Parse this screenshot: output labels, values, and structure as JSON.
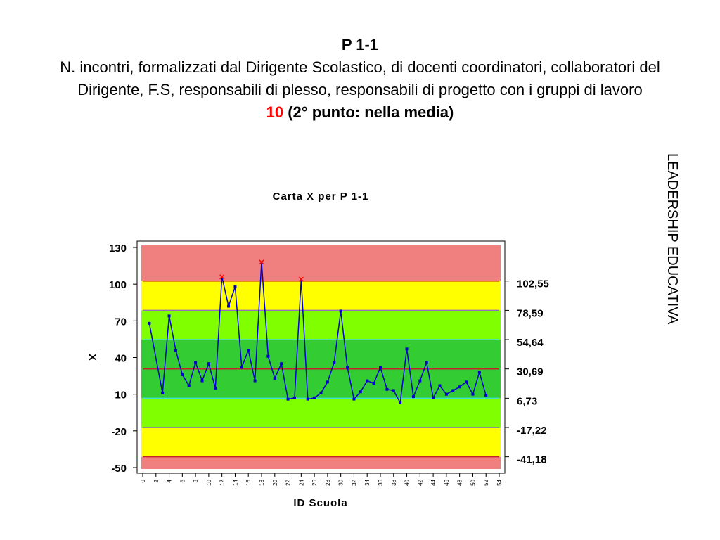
{
  "header": {
    "title": "P 1-1",
    "subtitle": "N. incontri, formalizzati dal Dirigente Scolastico, di docenti coordinatori, collaboratori del Dirigente, F.S, responsabili di plesso, responsabili di progetto con i gruppi di lavoro",
    "score": "10",
    "score_note": "(2° punto: nella media)",
    "side_label": "LEADERSHIP EDUCATIVA"
  },
  "chart_data": {
    "type": "line",
    "title": "Carta X per P 1-1",
    "x_label": "ID Scuola",
    "y_label": "X",
    "x": [
      1,
      3,
      4,
      5,
      6,
      7,
      8,
      9,
      10,
      11,
      12,
      13,
      14,
      15,
      16,
      17,
      18,
      19,
      20,
      21,
      22,
      23,
      24,
      25,
      26,
      27,
      28,
      29,
      30,
      31,
      32,
      33,
      34,
      35,
      36,
      37,
      38,
      39,
      40,
      41,
      42,
      43,
      44,
      45,
      46,
      47,
      48,
      49,
      50,
      51,
      52
    ],
    "series": [
      {
        "name": "X",
        "color": "#0000cc",
        "values": [
          68,
          11,
          74,
          46,
          26,
          17,
          36,
          21,
          35,
          15,
          106,
          82,
          98,
          32,
          46,
          21,
          118,
          41,
          23,
          35,
          6,
          7,
          104,
          6,
          7,
          11,
          20,
          36,
          78,
          32,
          6,
          12,
          21,
          19,
          32,
          14,
          13,
          3,
          47,
          8,
          21,
          36,
          7,
          17,
          10,
          13,
          16,
          20,
          10,
          28,
          9
        ]
      }
    ],
    "xlim": [
      0,
      54
    ],
    "xticks": [
      0,
      2,
      4,
      6,
      8,
      10,
      12,
      14,
      16,
      18,
      20,
      22,
      24,
      26,
      28,
      30,
      32,
      34,
      36,
      38,
      40,
      42,
      44,
      46,
      48,
      50,
      52,
      54
    ],
    "ylim": [
      -50,
      130
    ],
    "yticks": [
      -50,
      -20,
      10,
      40,
      70,
      100,
      130
    ],
    "limits": [
      {
        "value": 102.55,
        "label": "102,55"
      },
      {
        "value": 78.59,
        "label": "78,59"
      },
      {
        "value": 54.64,
        "label": "54,64"
      },
      {
        "value": 30.69,
        "label": "30,69"
      },
      {
        "value": 6.73,
        "label": "6,73"
      },
      {
        "value": -17.22,
        "label": "-17,22"
      },
      {
        "value": -41.18,
        "label": "-41,18"
      }
    ],
    "limit_colors": [
      "#c0262a",
      "#9370b8",
      "#40e0d0",
      "#c0262a",
      "#40e0d0",
      "#9370b8",
      "#c0262a"
    ],
    "zone_colors": [
      "#f08080",
      "#ffff00",
      "#80ff00",
      "#33cc33",
      "#33cc33",
      "#80ff00",
      "#ffff00",
      "#f08080"
    ],
    "out_of_control_color": "#ff0000"
  }
}
